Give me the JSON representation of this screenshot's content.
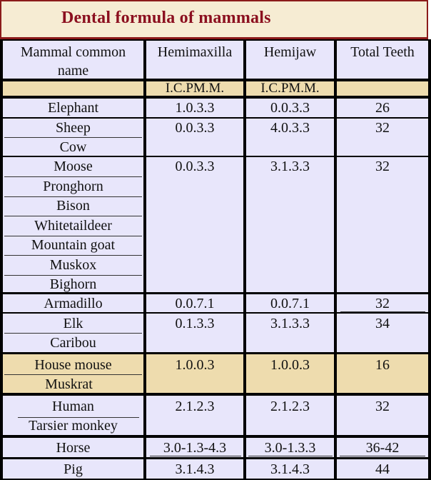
{
  "title": "Dental formula of mammals",
  "headers": {
    "name": "Mammal common name",
    "hemimaxilla": "Hemimaxilla",
    "hemijaw": "Hemijaw",
    "total": "Total Teeth"
  },
  "subheaders": {
    "hemimaxilla": "I.C.PM.M.",
    "hemijaw": "I.C.PM.M."
  },
  "rows": [
    {
      "names": [
        "Elephant"
      ],
      "hemimaxilla": "1.0.3.3",
      "hemijaw": "0.0.3.3",
      "total": "26"
    },
    {
      "names": [
        "Sheep",
        "Cow"
      ],
      "hemimaxilla": "0.0.3.3",
      "hemijaw": "4.0.3.3",
      "total": "32"
    },
    {
      "names": [
        "Moose",
        "Pronghorn",
        "Bison",
        "Whitetaildeer",
        "Mountain goat",
        "Muskox",
        "Bighorn"
      ],
      "hemimaxilla": "0.0.3.3",
      "hemijaw": "3.1.3.3",
      "total": "32"
    },
    {
      "names": [
        "Armadillo"
      ],
      "hemimaxilla": "0.0.7.1",
      "hemijaw": "0.0.7.1",
      "total": "32"
    },
    {
      "names": [
        "Elk",
        "Caribou"
      ],
      "hemimaxilla": "0.1.3.3",
      "hemijaw": "3.1.3.3",
      "total": "34"
    },
    {
      "names": [
        "House mouse",
        "Muskrat"
      ],
      "hemimaxilla": "1.0.0.3",
      "hemijaw": "1.0.0.3",
      "total": "16"
    },
    {
      "names": [
        "Human",
        "Tarsier monkey"
      ],
      "hemimaxilla": "2.1.2.3",
      "hemijaw": "2.1.2.3",
      "total": "32"
    },
    {
      "names": [
        "Horse"
      ],
      "hemimaxilla": "3.0-1.3-4.3",
      "hemijaw": "3.0-1.3.3",
      "total": "36-42"
    },
    {
      "names": [
        "Pig"
      ],
      "hemimaxilla": "3.1.4.3",
      "hemijaw": "3.1.4.3",
      "total": "44"
    }
  ]
}
